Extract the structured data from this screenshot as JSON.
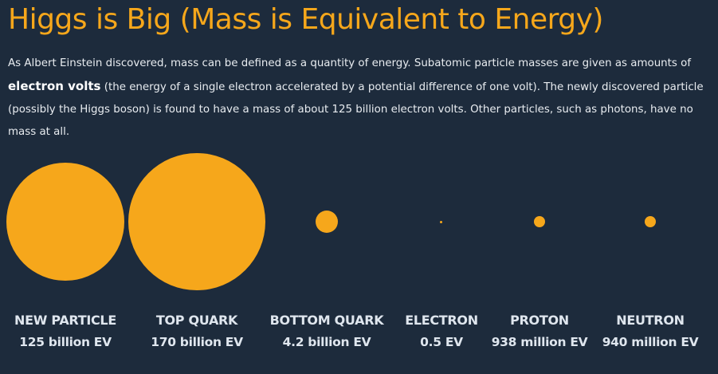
{
  "title": "Higgs is Big (Mass is Equivalent to Energy)",
  "intro": {
    "before": "As Albert Einstein discovered, mass can be defined as a quantity of energy. Subatomic particle masses are given as amounts of ",
    "highlight": "electron volts",
    "after": " (the energy of a single electron accelerated by a potential difference of one volt). The newly discovered particle (possibly the Higgs boson) is found to have a mass of about 125 billion electron volts. Other particles, such as photons, have no mass at all."
  },
  "colors": {
    "background": "#1d2b3c",
    "accent": "#f6a71b"
  },
  "particles": [
    {
      "name": "NEW PARTICLE",
      "value": "125 billion EV"
    },
    {
      "name": "TOP QUARK",
      "value": "170 billion EV"
    },
    {
      "name": "BOTTOM QUARK",
      "value": "4.2 billion EV"
    },
    {
      "name": "ELECTRON",
      "value": "0.5 EV"
    },
    {
      "name": "PROTON",
      "value": "938 million EV"
    },
    {
      "name": "NEUTRON",
      "value": "940 million EV"
    }
  ]
}
